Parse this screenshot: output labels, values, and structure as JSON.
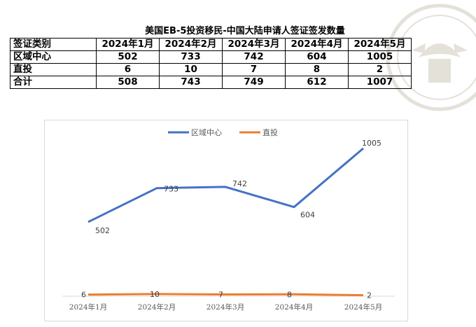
{
  "table": {
    "title": "美国EB-5投资移民-中国大陆申请人签证签发数量",
    "header": [
      "签证类别",
      "2024年1月",
      "2024年2月",
      "2024年3月",
      "2024年4月",
      "2024年5月"
    ],
    "rows": [
      [
        "区域中心",
        "502",
        "733",
        "742",
        "604",
        "1005"
      ],
      [
        "直投",
        "6",
        "10",
        "7",
        "8",
        "2"
      ],
      [
        "合计",
        "508",
        "743",
        "749",
        "612",
        "1007"
      ]
    ]
  },
  "chart_data": {
    "type": "line",
    "title": "",
    "xlabel": "",
    "ylabel": "",
    "categories": [
      "2024年1月",
      "2024年2月",
      "2024年3月",
      "2024年4月",
      "2024年5月"
    ],
    "series": [
      {
        "name": "区域中心",
        "values": [
          502,
          733,
          742,
          604,
          1005
        ],
        "color": "#4472c4"
      },
      {
        "name": "直投",
        "values": [
          6,
          10,
          7,
          8,
          2
        ],
        "color": "#ed7d31"
      }
    ],
    "ylim": [
      0,
      1100
    ],
    "grid": false,
    "legend": "top-center",
    "data_labels": true
  }
}
